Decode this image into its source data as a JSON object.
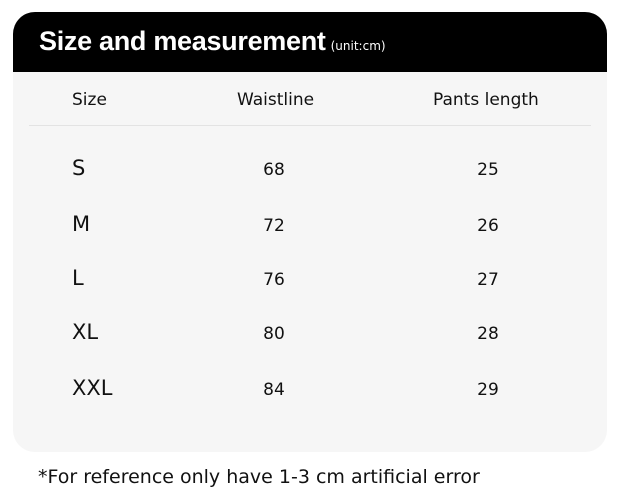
{
  "title": "Size and measurement",
  "unit": "(unit:cm)",
  "columns": [
    "Size",
    "Waistline",
    "Pants length"
  ],
  "rows": [
    {
      "size": "S",
      "waistline": "68",
      "pants_length": "25"
    },
    {
      "size": "M",
      "waistline": "72",
      "pants_length": "26"
    },
    {
      "size": "L",
      "waistline": "76",
      "pants_length": "27"
    },
    {
      "size": "XL",
      "waistline": "80",
      "pants_length": "28"
    },
    {
      "size": "XXL",
      "waistline": "84",
      "pants_length": "29"
    }
  ],
  "footnote": "*For reference only have 1-3 cm artificial error"
}
